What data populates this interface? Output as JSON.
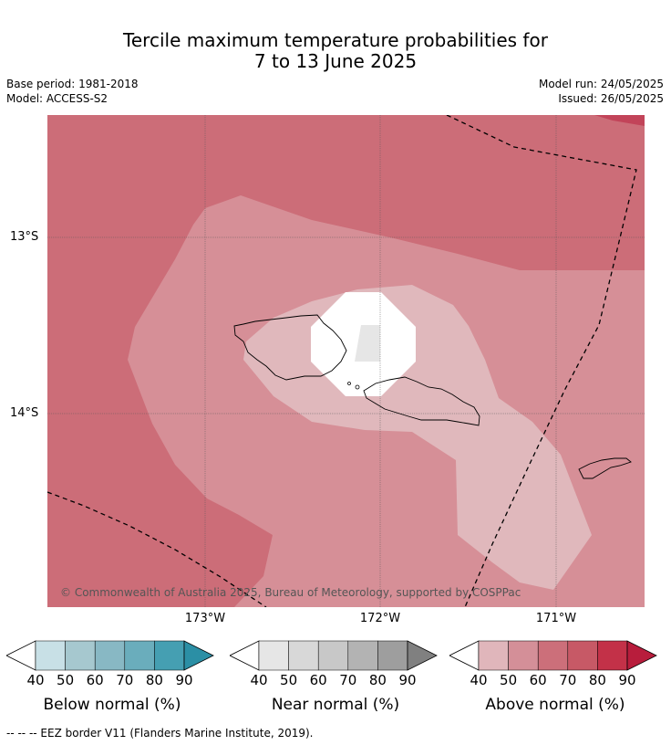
{
  "title_line1": "Tercile maximum temperature probabilities for",
  "title_line2": "7 to 13 June 2025",
  "base_period": "Base period: 1981-2018",
  "model": "Model: ACCESS-S2",
  "model_run": "Model run: 24/05/2025",
  "issued": "Issued: 26/05/2025",
  "map": {
    "lon_labels": [
      "173°W",
      "172°W",
      "171°W"
    ],
    "lat_labels": [
      "13°S",
      "14°S"
    ],
    "copyright": "© Commonwealth of Australia 2025, Bureau of Meteorology, supported by COSPPac"
  },
  "colorbars": [
    {
      "title": "Below normal (%)",
      "ticks": [
        "40",
        "50",
        "60",
        "70",
        "80",
        "90"
      ],
      "colors": [
        "#ffffff",
        "#c8e0e6",
        "#a6c8cf",
        "#88b8c4",
        "#6aadbc",
        "#459fb2",
        "#2b8fa5"
      ]
    },
    {
      "title": "Near normal (%)",
      "ticks": [
        "40",
        "50",
        "60",
        "70",
        "80",
        "90"
      ],
      "colors": [
        "#ffffff",
        "#e6e6e6",
        "#d8d8d8",
        "#c8c8c8",
        "#b3b3b3",
        "#9e9e9e",
        "#808080"
      ]
    },
    {
      "title": "Above normal (%)",
      "ticks": [
        "40",
        "50",
        "60",
        "70",
        "80",
        "90"
      ],
      "colors": [
        "#ffffff",
        "#e0b6bb",
        "#d48f98",
        "#cc6f7a",
        "#c75966",
        "#c33148",
        "#b81d3c"
      ]
    }
  ],
  "footnote": "--  --  -- EEZ border V11 (Flanders Marine Institute, 2019)."
}
